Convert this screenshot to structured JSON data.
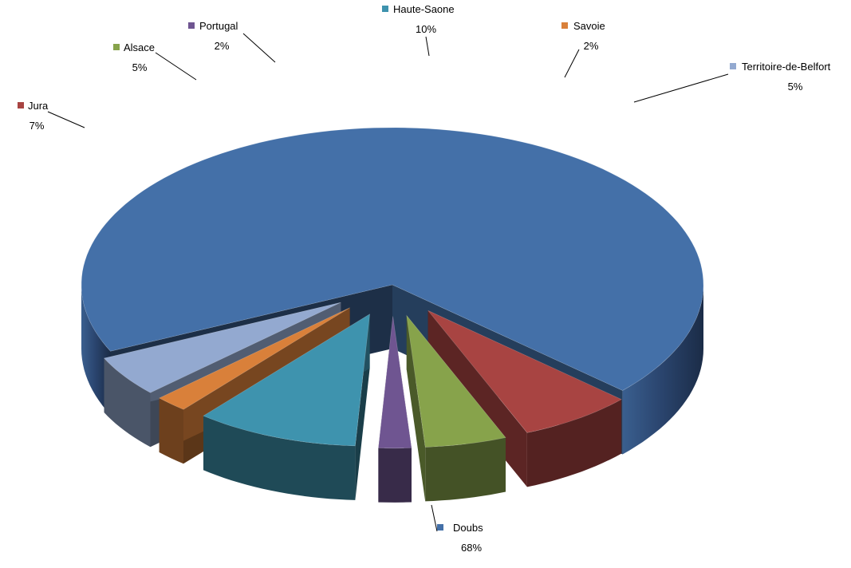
{
  "chart_data": {
    "type": "pie",
    "style": "3d-exploded",
    "title": "",
    "legend": "none",
    "slices": [
      {
        "label": "Doubs",
        "value": 68,
        "display": "68%",
        "color": "#4470a8"
      },
      {
        "label": "Jura",
        "value": 7,
        "display": "7%",
        "color": "#a84442"
      },
      {
        "label": "Alsace",
        "value": 5,
        "display": "5%",
        "color": "#87a34b"
      },
      {
        "label": "Portugal",
        "value": 2,
        "display": "2%",
        "color": "#6f5591"
      },
      {
        "label": "Haute-Saone",
        "value": 10,
        "display": "10%",
        "color": "#3e93ae"
      },
      {
        "label": "Savoie",
        "value": 2,
        "display": "2%",
        "color": "#d9803a"
      },
      {
        "label": "Territoire-de-Belfort",
        "value": 5,
        "display": "5%",
        "color": "#93a9d0"
      }
    ]
  }
}
